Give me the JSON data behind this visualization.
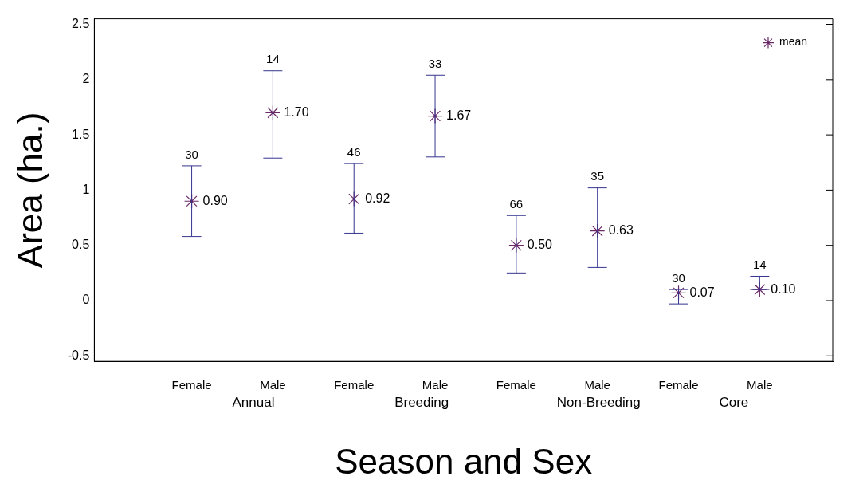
{
  "chart_data": {
    "type": "scatter",
    "xlabel": "Season and Sex",
    "ylabel": "Area (ha.)",
    "categories": [
      "Female",
      "Male",
      "Female",
      "Male",
      "Female",
      "Male",
      "Female",
      "Male"
    ],
    "series": [
      {
        "name": "mean",
        "color": "#6a2a6a",
        "values": [
          0.9,
          1.7,
          0.92,
          1.67,
          0.5,
          0.63,
          0.07,
          0.1
        ],
        "value_labels": [
          "0.90",
          "1.70",
          "0.92",
          "1.67",
          "0.50",
          "0.63",
          "0.07",
          "0.10"
        ],
        "errors": [
          [
            0.58,
            1.22
          ],
          [
            1.29,
            2.08
          ],
          [
            0.61,
            1.24
          ],
          [
            1.3,
            2.04
          ],
          [
            0.25,
            0.77
          ],
          [
            0.3,
            1.02
          ],
          [
            -0.03,
            0.1
          ],
          [
            0.1,
            0.22
          ]
        ]
      }
    ],
    "marker": "cross",
    "legend": "top right",
    "grid": false,
    "ylim": [
      -0.55,
      2.55
    ],
    "yticks": [
      -0.5,
      0,
      0.5,
      1,
      1.5,
      2,
      2.5
    ],
    "annotations": [
      "30",
      "14",
      "46",
      "33",
      "66",
      "35",
      "30",
      "14",
      "Annual",
      "Breeding",
      "Non-Breeding",
      "Core"
    ]
  }
}
